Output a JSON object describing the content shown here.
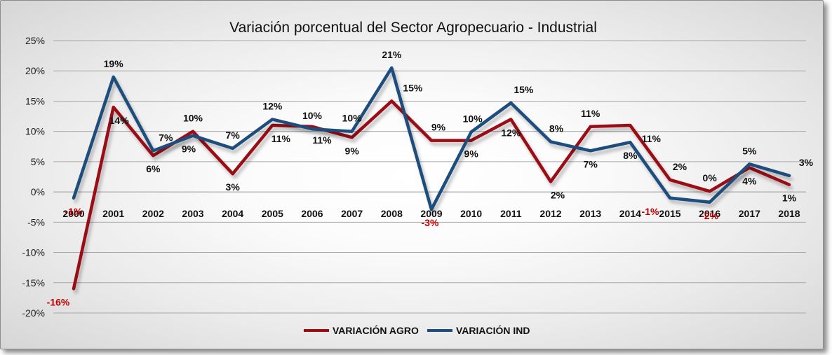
{
  "chart_data": {
    "type": "line",
    "title": "Variación porcentual del Sector Agropecuario - Industrial",
    "xlabel": "",
    "ylabel": "",
    "ylim": [
      -20,
      25
    ],
    "y_ticks": [
      "25%",
      "20%",
      "15%",
      "10%",
      "5%",
      "0%",
      "-5%",
      "-10%",
      "-15%",
      "-20%"
    ],
    "y_tick_values": [
      25,
      20,
      15,
      10,
      5,
      0,
      -5,
      -10,
      -15,
      -20
    ],
    "grid": true,
    "legend_position": "bottom",
    "categories": [
      "2000",
      "2001",
      "2002",
      "2003",
      "2004",
      "2005",
      "2006",
      "2007",
      "2008",
      "2009",
      "2010",
      "2011",
      "2012",
      "2013",
      "2014",
      "2015",
      "2016",
      "2017",
      "2018"
    ],
    "series": [
      {
        "name": "VARIACIÓN AGRO",
        "color": "#9b0d12",
        "values": [
          -16,
          14,
          6,
          10,
          3,
          11,
          10.8,
          9,
          15,
          8.5,
          8.5,
          12,
          1.7,
          10.8,
          11,
          2,
          0.1,
          4,
          1.2
        ],
        "labels": [
          "-16%",
          "14%",
          "6%",
          "10%",
          "3%",
          "11%",
          "11%",
          "9%",
          "15%",
          "9%",
          "9%",
          "12%",
          "2%",
          "11%",
          "11%",
          "2%",
          "0%",
          "4%",
          "1%"
        ]
      },
      {
        "name": "VARIACIÓN IND",
        "color": "#1f4e7d",
        "values": [
          -1,
          19,
          6.8,
          9.3,
          7.2,
          12,
          10.4,
          10,
          20.5,
          -2.9,
          9.9,
          14.7,
          8.3,
          6.8,
          8.2,
          -1,
          -1.7,
          4.6,
          2.7
        ],
        "labels": [
          "-1%",
          "19%",
          "7%",
          "9%",
          "7%",
          "12%",
          "10%",
          "10%",
          "21%",
          "-3%",
          "10%",
          "15%",
          "8%",
          "7%",
          "8%",
          "-1%",
          "-2%",
          "5%",
          "3%"
        ]
      }
    ]
  }
}
